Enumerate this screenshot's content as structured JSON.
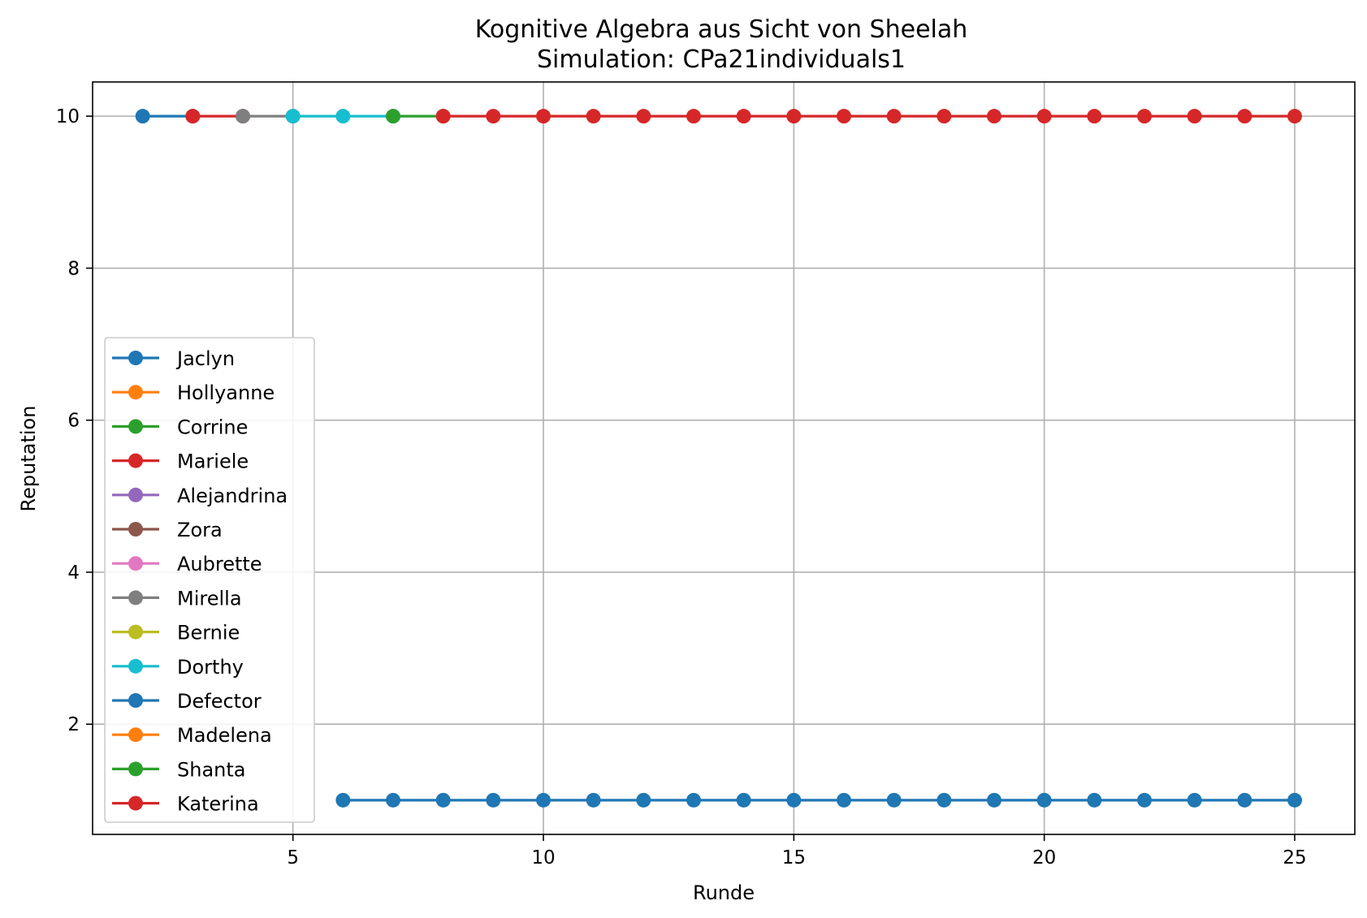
{
  "chart_data": {
    "type": "line",
    "title": "Kognitive Algebra aus Sicht von Sheelah",
    "subtitle": "Simulation: CPa21individuals1",
    "xlabel": "Runde",
    "ylabel": "Reputation",
    "xlim": [
      1.0,
      26.2
    ],
    "ylim": [
      0.55,
      10.45
    ],
    "xticks": [
      "5",
      "10",
      "15",
      "20",
      "25"
    ],
    "yticks": [
      "2",
      "4",
      "6",
      "8",
      "10"
    ],
    "grid": true,
    "legend_position": "lower-left",
    "series": [
      {
        "name": "Jaclyn",
        "color": "#1f77b4",
        "x": [
          2,
          3
        ],
        "y": [
          10,
          10
        ]
      },
      {
        "name": "Hollyanne",
        "color": "#ff7f0e",
        "x": [],
        "y": []
      },
      {
        "name": "Corrine",
        "color": "#2ca02c",
        "x": [],
        "y": []
      },
      {
        "name": "Mariele",
        "color": "#d62728",
        "x": [
          3,
          4
        ],
        "y": [
          10,
          10
        ]
      },
      {
        "name": "Alejandrina",
        "color": "#9467bd",
        "x": [],
        "y": []
      },
      {
        "name": "Zora",
        "color": "#8c564b",
        "x": [],
        "y": []
      },
      {
        "name": "Aubrette",
        "color": "#e377c2",
        "x": [],
        "y": []
      },
      {
        "name": "Mirella",
        "color": "#7f7f7f",
        "x": [
          4,
          5
        ],
        "y": [
          10,
          10
        ]
      },
      {
        "name": "Bernie",
        "color": "#bcbd22",
        "x": [],
        "y": []
      },
      {
        "name": "Dorthy",
        "color": "#17becf",
        "x": [
          5,
          6,
          7
        ],
        "y": [
          10,
          10,
          10
        ]
      },
      {
        "name": "Defector",
        "color": "#1f77b4",
        "x": [
          6,
          7,
          8,
          9,
          10,
          11,
          12,
          13,
          14,
          15,
          16,
          17,
          18,
          19,
          20,
          21,
          22,
          23,
          24,
          25
        ],
        "y": [
          1,
          1,
          1,
          1,
          1,
          1,
          1,
          1,
          1,
          1,
          1,
          1,
          1,
          1,
          1,
          1,
          1,
          1,
          1,
          1
        ]
      },
      {
        "name": "Madelena",
        "color": "#ff7f0e",
        "x": [],
        "y": []
      },
      {
        "name": "Shanta",
        "color": "#2ca02c",
        "x": [
          7,
          8
        ],
        "y": [
          10,
          10
        ]
      },
      {
        "name": "Katerina",
        "color": "#d62728",
        "x": [
          8,
          9,
          10,
          11,
          12,
          13,
          14,
          15,
          16,
          17,
          18,
          19,
          20,
          21,
          22,
          23,
          24,
          25
        ],
        "y": [
          10,
          10,
          10,
          10,
          10,
          10,
          10,
          10,
          10,
          10,
          10,
          10,
          10,
          10,
          10,
          10,
          10,
          10
        ]
      }
    ]
  }
}
